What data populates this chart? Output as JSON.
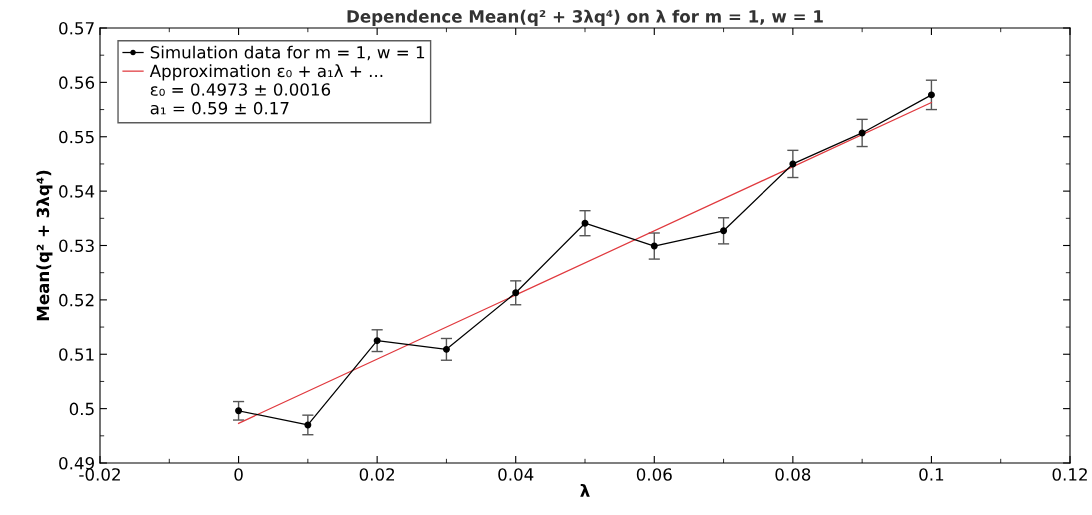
{
  "chart_data": {
    "type": "line",
    "title": "Dependence Mean(q² + 3λq⁴) on λ for m = 1, w = 1",
    "xlabel": "λ",
    "ylabel": "Mean(q² + 3λq⁴)",
    "series": [
      {
        "name": "Simulation data for m = 1, w = 1",
        "color": "#000000",
        "marker": "circle",
        "x": [
          0,
          0.01,
          0.02,
          0.03,
          0.04,
          0.05,
          0.06,
          0.07,
          0.08,
          0.09,
          0.1
        ],
        "values": [
          0.4996,
          0.497,
          0.5125,
          0.5109,
          0.5213,
          0.5341,
          0.5299,
          0.5327,
          0.545,
          0.5507,
          0.5577
        ],
        "errors": [
          0.0017,
          0.0018,
          0.002,
          0.002,
          0.0022,
          0.0023,
          0.0024,
          0.0024,
          0.0025,
          0.0025,
          0.0027
        ]
      },
      {
        "name": "Approximation ε₀ + a₁λ + ...",
        "color": "#e0393e",
        "x": [
          0,
          0.1
        ],
        "values": [
          0.4973,
          0.5563
        ]
      }
    ],
    "annotations": [
      "ε₀ = 0.4973 ± 0.0016",
      "a₁ = 0.59 ± 0.17"
    ],
    "xlim": [
      -0.02,
      0.12
    ],
    "xticks": [
      -0.02,
      0,
      0.02,
      0.04,
      0.06,
      0.08,
      0.1,
      0.12
    ],
    "ylim": [
      0.49,
      0.57
    ],
    "yticks": [
      0.49,
      0.5,
      0.51,
      0.52,
      0.53,
      0.54,
      0.55,
      0.56,
      0.57
    ],
    "legend": "top left",
    "grid": false
  }
}
